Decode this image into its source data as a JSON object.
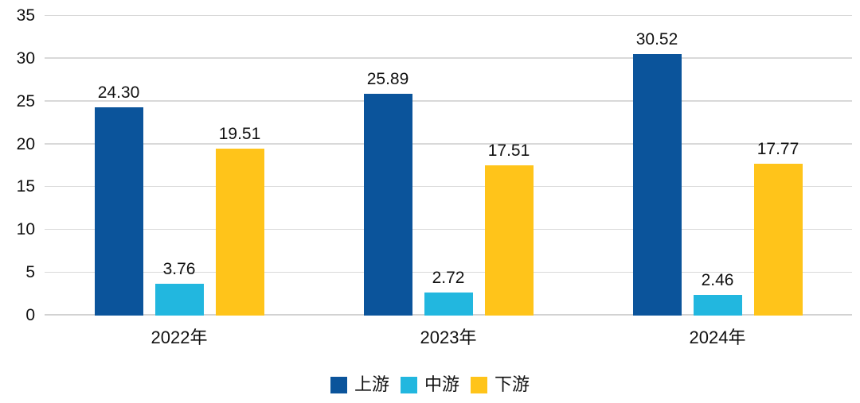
{
  "chart_data": {
    "type": "bar",
    "title": "",
    "xlabel": "",
    "ylabel": "",
    "categories": [
      "2022年",
      "2023年",
      "2024年"
    ],
    "series": [
      {
        "name": "上游",
        "color": "#0b549b",
        "values": [
          24.3,
          25.89,
          30.52
        ],
        "labels": [
          "24.30",
          "25.89",
          "30.52"
        ]
      },
      {
        "name": "中游",
        "color": "#22b7df",
        "values": [
          3.76,
          2.72,
          2.46
        ],
        "labels": [
          "3.76",
          "2.72",
          "2.46"
        ]
      },
      {
        "name": "下游",
        "color": "#ffc41a",
        "values": [
          19.51,
          17.51,
          17.77
        ],
        "labels": [
          "19.51",
          "17.51",
          "17.77"
        ]
      }
    ],
    "ylim": [
      0,
      35
    ],
    "ytick_step": 5,
    "ytick_labels": [
      "0",
      "5",
      "10",
      "15",
      "20",
      "25",
      "30",
      "35"
    ],
    "grid": true,
    "legend_position": "bottom"
  },
  "colors": {
    "background": "#ffffff",
    "gridline": "#d9d9d9",
    "axis_line": "#d2d2d2",
    "text": "#111111"
  }
}
